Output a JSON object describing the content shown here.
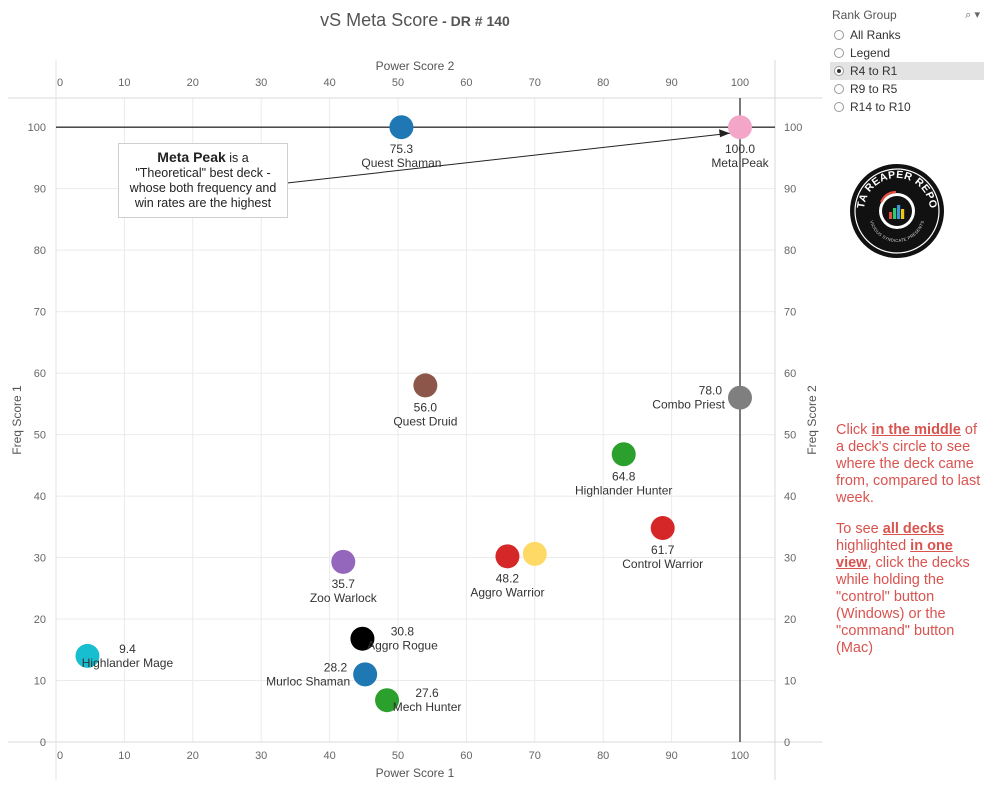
{
  "title": {
    "main": "vS Meta Score",
    "sub": " - DR # 140"
  },
  "chart_data": {
    "type": "scatter",
    "xlabel": "Power Score 1",
    "xlabel_top": "Power Score 2",
    "ylabel": "Freq Score 1",
    "ylabel_right": "Freq Score 2",
    "xlim": [
      0,
      105
    ],
    "ylim": [
      0,
      105
    ],
    "xticks": [
      0,
      10,
      20,
      30,
      40,
      50,
      60,
      70,
      80,
      90,
      100
    ],
    "yticks": [
      0,
      10,
      20,
      30,
      40,
      50,
      60,
      70,
      80,
      90,
      100
    ],
    "grid": true,
    "reference_lines": {
      "x": 100,
      "y": 100
    },
    "points": [
      {
        "name": "Quest Shaman",
        "score": "75.3",
        "x": 50.5,
        "y": 100,
        "color": "#1f77b4",
        "label_pos": "below"
      },
      {
        "name": "Meta Peak",
        "score": "100.0",
        "x": 100,
        "y": 100,
        "color": "#f4a6c8",
        "label_pos": "below"
      },
      {
        "name": "Quest Druid",
        "score": "56.0",
        "x": 54,
        "y": 58,
        "color": "#8c564b",
        "label_pos": "below"
      },
      {
        "name": "Combo Priest",
        "score": "78.0",
        "x": 100,
        "y": 56,
        "color": "#7f7f7f",
        "label_pos": "left"
      },
      {
        "name": "Highlander Hunter",
        "score": "64.8",
        "x": 83,
        "y": 46.8,
        "color": "#2ca02c",
        "label_pos": "below"
      },
      {
        "name": "Control Warrior",
        "score": "61.7",
        "x": 88.7,
        "y": 34.8,
        "color": "#d62728",
        "label_pos": "below"
      },
      {
        "name": "Aggro Warrior",
        "score": "48.2",
        "x": 66,
        "y": 30.2,
        "color": "#d62728",
        "label_pos": "below"
      },
      {
        "name": "",
        "score": "",
        "x": 70,
        "y": 30.6,
        "color": "#ffd966",
        "label_pos": "none"
      },
      {
        "name": "Zoo Warlock",
        "score": "35.7",
        "x": 42,
        "y": 29.3,
        "color": "#9467bd",
        "label_pos": "below"
      },
      {
        "name": "Aggro Rogue",
        "score": "30.8",
        "x": 44.8,
        "y": 16.8,
        "color": "#000000",
        "label_pos": "right"
      },
      {
        "name": "Highlander Mage",
        "score": "9.4",
        "x": 4.6,
        "y": 14,
        "color": "#17becf",
        "label_pos": "right"
      },
      {
        "name": "Murloc Shaman",
        "score": "28.2",
        "x": 45.2,
        "y": 11,
        "color": "#1f77b4",
        "label_pos": "left"
      },
      {
        "name": "Mech Hunter",
        "score": "27.6",
        "x": 48.4,
        "y": 6.8,
        "color": "#2ca02c",
        "label_pos": "right"
      }
    ]
  },
  "annotation": {
    "bold": "Meta Peak",
    "line1_rest": " is a",
    "line2": "\"Theoretical\" best deck -",
    "line3": "whose both frequency and",
    "line4": "win rates are the highest"
  },
  "filter": {
    "title": "Rank Group",
    "controls": "⌕ ▾",
    "options": [
      "All Ranks",
      "Legend",
      "R4 to R1",
      "R9 to R5",
      "R14 to R10"
    ],
    "selected_index": 2
  },
  "logo": {
    "top_text": "DATA REAPER REPORT",
    "bottom_text": "VICIOUS SYNDICATE PRESENTS"
  },
  "instructions": {
    "p1_a": "Click ",
    "p1_b": "in the middle",
    "p1_c": " of a deck's circle to see where the deck came from, compared to last week.",
    "p2_a": "To see ",
    "p2_b": "all decks ",
    "p2_c": "highlighted ",
    "p2_d": "in one view",
    "p2_e": ", click the decks while holding the \"control\" button (Windows) or the \"command\" button (Mac)"
  },
  "colors": {
    "accent_text": "#d9534f",
    "ref_line": "#333333",
    "grid": "#ebebeb"
  }
}
